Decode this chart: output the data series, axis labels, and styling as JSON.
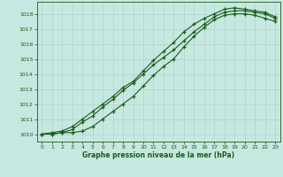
{
  "bg_color": "#c6e8e0",
  "grid_color": "#b0d4cc",
  "line_color": "#1a5c1a",
  "marker_color": "#1a5c1a",
  "xlabel": "Graphe pression niveau de la mer (hPa)",
  "xlabel_color": "#1a5c1a",
  "tick_color": "#1a5c1a",
  "ylabel_ticks": [
    1010,
    1011,
    1012,
    1013,
    1014,
    1015,
    1016,
    1017,
    1018
  ],
  "xlabel_ticks": [
    0,
    1,
    2,
    3,
    4,
    5,
    6,
    7,
    8,
    9,
    10,
    11,
    12,
    13,
    14,
    15,
    16,
    17,
    18,
    19,
    20,
    21,
    22,
    23
  ],
  "ylim": [
    1009.5,
    1018.8
  ],
  "xlim": [
    -0.5,
    23.5
  ],
  "line1_x": [
    0,
    1,
    2,
    3,
    4,
    5,
    6,
    7,
    8,
    9,
    10,
    11,
    12,
    13,
    14,
    15,
    16,
    17,
    18,
    19,
    20,
    21,
    22,
    23
  ],
  "line1_y": [
    1010.0,
    1010.0,
    1010.1,
    1010.3,
    1010.8,
    1011.2,
    1011.8,
    1012.3,
    1012.9,
    1013.4,
    1014.0,
    1014.6,
    1015.1,
    1015.6,
    1016.2,
    1016.8,
    1017.3,
    1017.8,
    1018.1,
    1018.2,
    1018.2,
    1018.1,
    1018.0,
    1017.7
  ],
  "line2_x": [
    0,
    1,
    2,
    3,
    4,
    5,
    6,
    7,
    8,
    9,
    10,
    11,
    12,
    13,
    14,
    15,
    16,
    17,
    18,
    19,
    20,
    21,
    22,
    23
  ],
  "line2_y": [
    1010.0,
    1010.1,
    1010.2,
    1010.5,
    1011.0,
    1011.5,
    1012.0,
    1012.5,
    1013.1,
    1013.5,
    1014.2,
    1014.9,
    1015.5,
    1016.1,
    1016.8,
    1017.3,
    1017.7,
    1018.0,
    1018.3,
    1018.4,
    1018.3,
    1018.2,
    1018.1,
    1017.8
  ],
  "line3_x": [
    0,
    1,
    2,
    3,
    4,
    5,
    6,
    7,
    8,
    9,
    10,
    11,
    12,
    13,
    14,
    15,
    16,
    17,
    18,
    19,
    20,
    21,
    22,
    23
  ],
  "line3_y": [
    1010.0,
    1010.0,
    1010.1,
    1010.1,
    1010.2,
    1010.5,
    1011.0,
    1011.5,
    1012.0,
    1012.5,
    1013.2,
    1013.9,
    1014.5,
    1015.0,
    1015.8,
    1016.5,
    1017.1,
    1017.6,
    1017.9,
    1018.0,
    1018.0,
    1017.9,
    1017.7,
    1017.5
  ]
}
